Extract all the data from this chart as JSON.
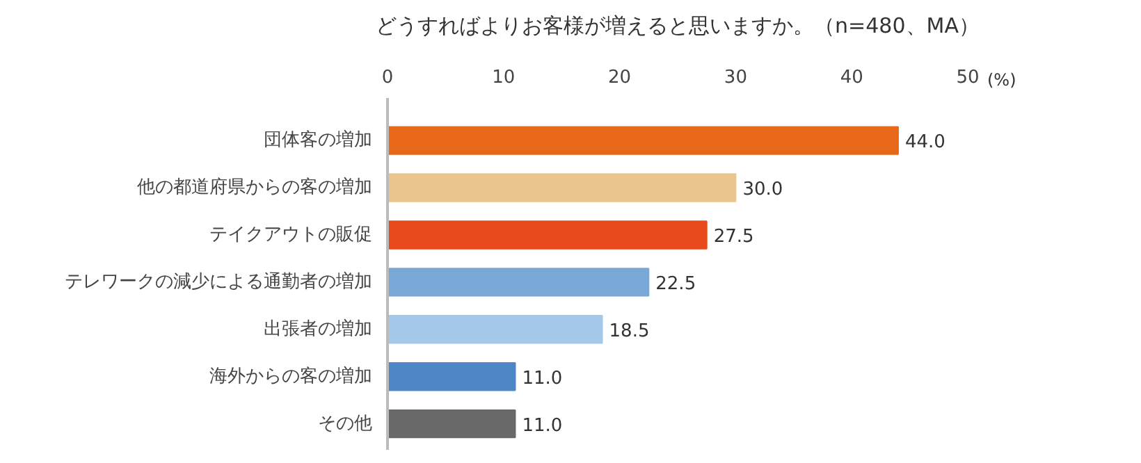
{
  "chart_data": {
    "type": "bar",
    "orientation": "horizontal",
    "title": "どうすればよりお客様が増えると思いますか。（n=480、MA）",
    "xlabel": "(%)",
    "categories": [
      "団体客の増加",
      "他の都道府県からの客の増加",
      "テイクアウトの販促",
      "テレワークの減少による通勤者の増加",
      "出張者の増加",
      "海外からの客の増加",
      "その他"
    ],
    "values": [
      44.0,
      30.0,
      27.5,
      22.5,
      18.5,
      11.0,
      11.0
    ],
    "colors": [
      "#e8681a",
      "#eac68e",
      "#e84a1c",
      "#7aa8d6",
      "#a4c8ea",
      "#4f86c6",
      "#696969"
    ],
    "value_labels": [
      "44.0",
      "30.0",
      "27.5",
      "22.5",
      "18.5",
      "11.0",
      "11.0"
    ],
    "xlim": [
      0,
      50
    ],
    "xticks": [
      0,
      10,
      20,
      30,
      40,
      50
    ],
    "grid": false
  }
}
